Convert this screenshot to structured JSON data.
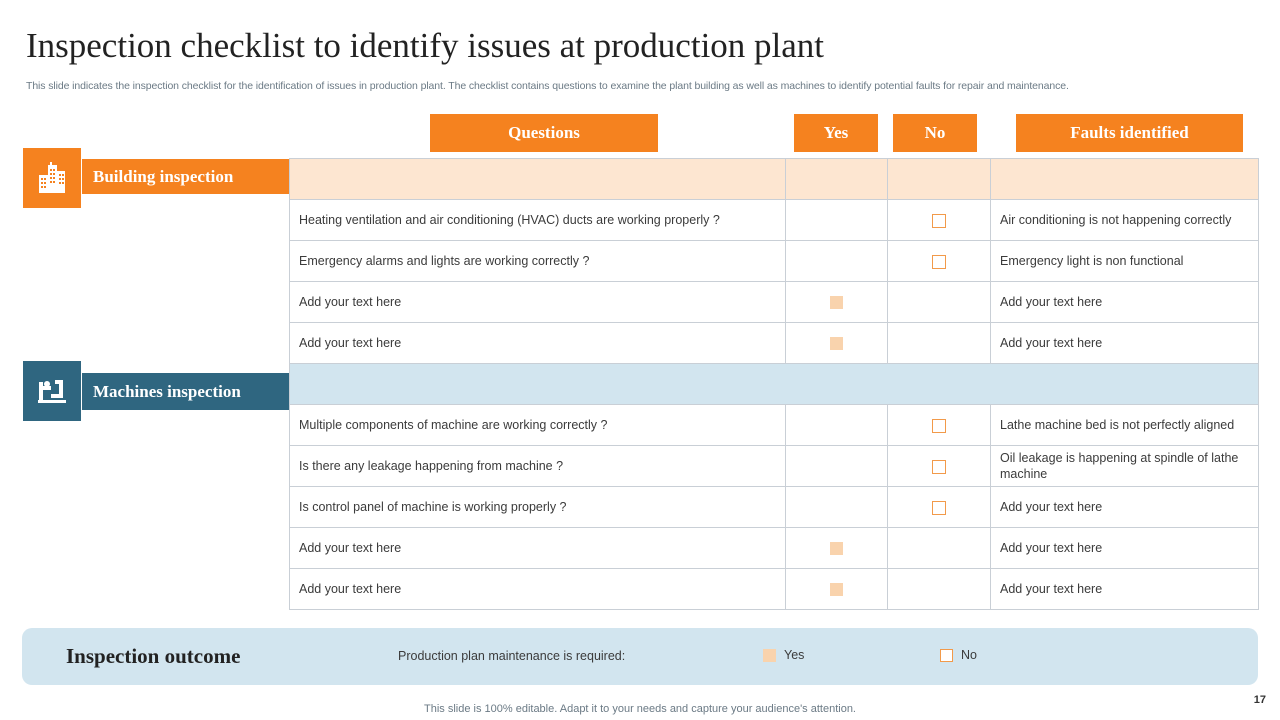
{
  "title": "Inspection checklist to identify issues at production plant",
  "subtitle": "This slide indicates the inspection checklist for the identification of issues in production plant. The checklist contains questions to examine the plant building as well as machines to identify potential faults for repair and maintenance.",
  "headers": {
    "questions": "Questions",
    "yes": "Yes",
    "no": "No",
    "faults": "Faults identified"
  },
  "colors": {
    "accent_orange": "#f5821f",
    "accent_blue": "#2f6680",
    "section_orange_bg": "#fde6d1",
    "section_blue_bg": "#d2e5ef"
  },
  "sections": [
    {
      "label": "Building inspection",
      "icon": "building-icon",
      "rows": [
        {
          "question": "Heating ventilation  and air conditioning (HVAC) ducts are working properly ?",
          "answer": "no",
          "fault": "Air conditioning is not happening correctly"
        },
        {
          "question": "Emergency alarms and lights are working correctly ?",
          "answer": "no",
          "fault": "Emergency light is non functional"
        },
        {
          "question": "Add your text here",
          "answer": "yes",
          "fault": "Add your text here"
        },
        {
          "question": "Add your text here",
          "answer": "yes",
          "fault": "Add your text here"
        }
      ]
    },
    {
      "label": "Machines inspection",
      "icon": "machine-icon",
      "rows": [
        {
          "question": "Multiple components of machine are working correctly ?",
          "answer": "no",
          "fault": "Lathe machine bed is not perfectly aligned"
        },
        {
          "question": "Is there any leakage happening from machine ?",
          "answer": "no",
          "fault": "Oil leakage is happening  at spindle of lathe machine"
        },
        {
          "question": "Is control panel of machine is working properly ?",
          "answer": "no",
          "fault": "Add your text here"
        },
        {
          "question": "Add your text here",
          "answer": "yes",
          "fault": "Add your text here"
        },
        {
          "question": "Add your text here",
          "answer": "yes",
          "fault": "Add your text here"
        }
      ]
    }
  ],
  "outcome": {
    "title": "Inspection outcome",
    "question": "Production plan maintenance is required:",
    "yes_label": "Yes",
    "no_label": "No"
  },
  "footer": "This slide is 100% editable. Adapt it to your needs and capture your audience's attention.",
  "page_number": "17"
}
